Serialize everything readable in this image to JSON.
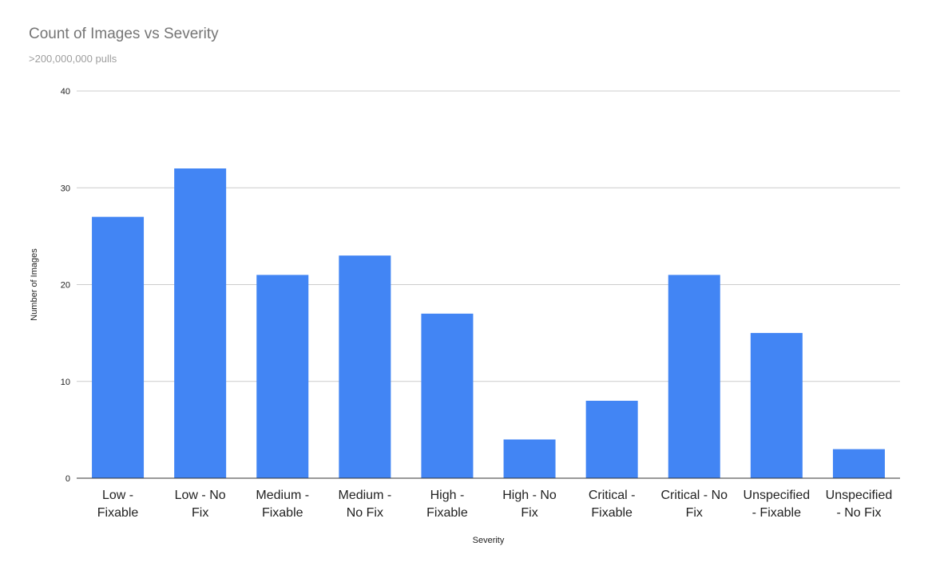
{
  "chart_data": {
    "type": "bar",
    "title": "Count of Images vs Severity",
    "subtitle": ">200,000,000 pulls",
    "xlabel": "Severity",
    "ylabel": "Number of Images",
    "ylim": [
      0,
      40
    ],
    "yticks": [
      0,
      10,
      20,
      30,
      40
    ],
    "grid": true,
    "legend": "none",
    "bar_color": "#4285f4",
    "categories": [
      [
        "Low -",
        "Fixable"
      ],
      [
        "Low - No",
        "Fix"
      ],
      [
        "Medium -",
        "Fixable"
      ],
      [
        "Medium -",
        "No Fix"
      ],
      [
        "High -",
        "Fixable"
      ],
      [
        "High - No",
        "Fix"
      ],
      [
        "Critical -",
        "Fixable"
      ],
      [
        "Critical - No",
        "Fix"
      ],
      [
        "Unspecified",
        "- Fixable"
      ],
      [
        "Unspecified",
        "- No Fix"
      ]
    ],
    "values": [
      27,
      32,
      21,
      23,
      17,
      4,
      8,
      21,
      15,
      3
    ]
  }
}
